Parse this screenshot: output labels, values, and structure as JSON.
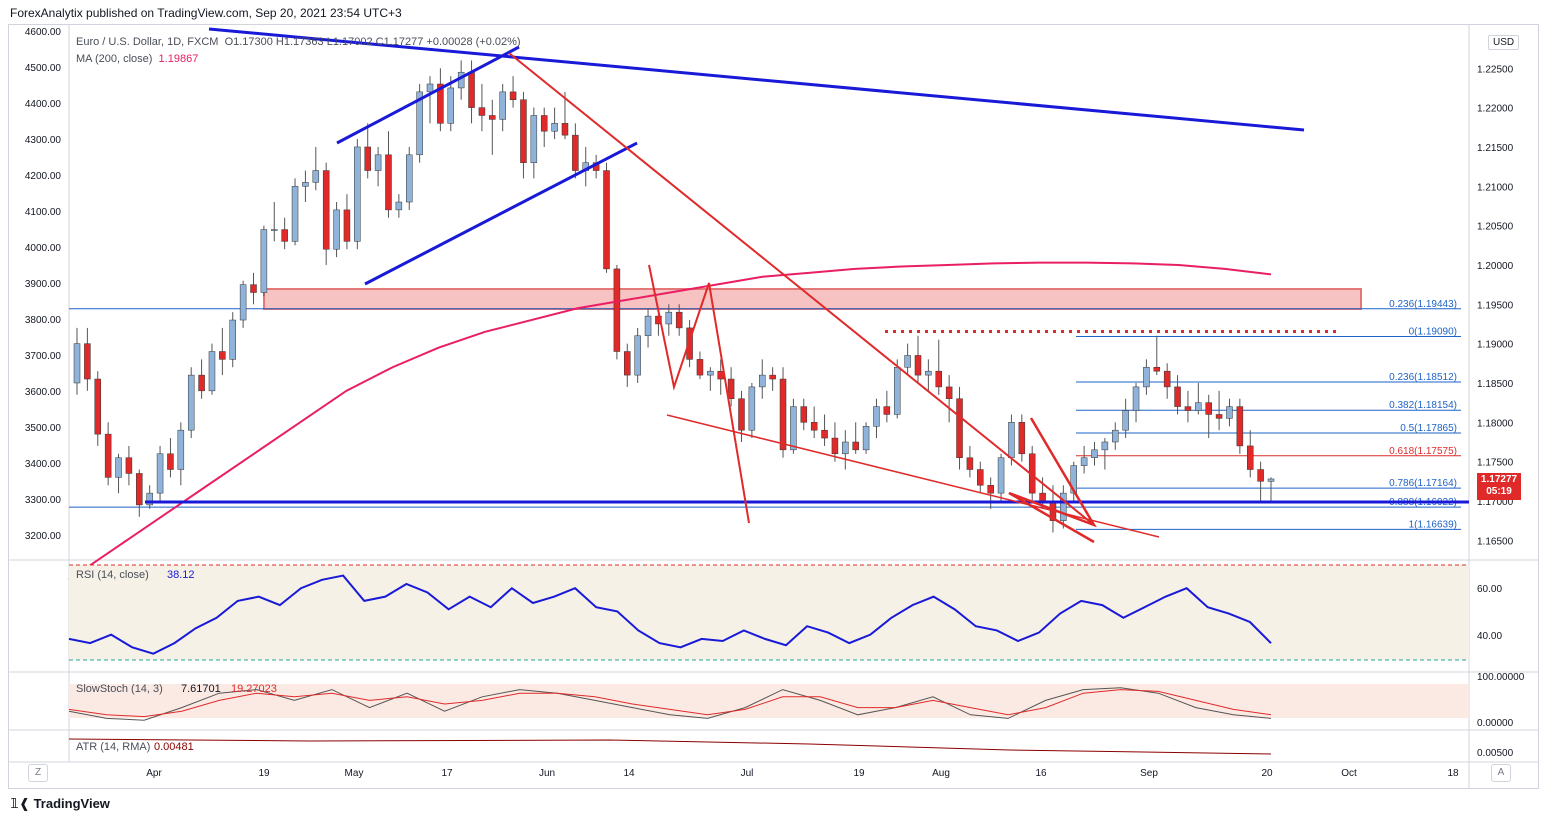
{
  "header": {
    "published_by": "ForexAnalytix published on TradingView.com, Sep 20, 2021 23:54 UTC+3"
  },
  "legend": {
    "symbol": "Euro / U.S. Dollar, 1D, FXCM",
    "ohlc": "O1.17300  H1.17363  L1.17002  C1.17277  +0.00028 (+0.02%)",
    "ma_label": "MA (200, close)",
    "ma_value": "1.19867",
    "ma_color": "#e91e63"
  },
  "currency_badge": "USD",
  "price_tag": {
    "price": "1.17277",
    "countdown": "05:19"
  },
  "footer": {
    "brand": "TradingView"
  },
  "corner_buttons": {
    "zoom": "Z",
    "auto": "A"
  },
  "chart_data": {
    "type": "candlestick",
    "title": "Euro / U.S. Dollar, 1D, FXCM",
    "colors": {
      "up": "#8fb3d9",
      "down": "#e02a2a",
      "trendline": "#1919d8",
      "fib": "#1e63c8",
      "ma": "#e91e63",
      "zone_fill": "#f5b8b8"
    },
    "left_axis_ticks": [
      "4600.00",
      "4500.00",
      "4400.00",
      "4300.00",
      "4200.00",
      "4100.00",
      "4000.00",
      "3900.00",
      "3800.00",
      "3700.00",
      "3600.00",
      "3500.00",
      "3400.00",
      "3300.00",
      "3200.00"
    ],
    "right_axis_ticks": [
      "1.22500",
      "1.22000",
      "1.21500",
      "1.21000",
      "1.20500",
      "1.20000",
      "1.19500",
      "1.19000",
      "1.18500",
      "1.18000",
      "1.17500",
      "1.17000",
      "1.16500"
    ],
    "y_range": [
      1.1625,
      1.2305
    ],
    "x_ticks": [
      "Apr",
      "19",
      "May",
      "17",
      "Jun",
      "14",
      "Jul",
      "19",
      "Aug",
      "16",
      "Sep",
      "20",
      "Oct",
      "18"
    ],
    "last_close": 1.17277,
    "fib_levels": [
      {
        "label": "0.236(1.19443)",
        "value": 1.19443
      },
      {
        "label": "0(1.19090)",
        "value": 1.1909
      },
      {
        "label": "0.236(1.18512)",
        "value": 1.18512
      },
      {
        "label": "0.382(1.18154)",
        "value": 1.18154
      },
      {
        "label": "0.5(1.17865)",
        "value": 1.17865
      },
      {
        "label": "0.618(1.17575)",
        "value": 1.17575
      },
      {
        "label": "0.786(1.17164)",
        "value": 1.17164
      },
      {
        "label": "0.888(1.16922)",
        "value": 1.16922
      },
      {
        "label": "1(1.16639)",
        "value": 1.16639
      }
    ],
    "candles": [
      [
        1.185,
        1.192,
        1.1835,
        1.19
      ],
      [
        1.19,
        1.192,
        1.184,
        1.1855
      ],
      [
        1.1855,
        1.1865,
        1.177,
        1.1785
      ],
      [
        1.1785,
        1.18,
        1.172,
        1.173
      ],
      [
        1.173,
        1.176,
        1.171,
        1.1755
      ],
      [
        1.1755,
        1.177,
        1.172,
        1.1735
      ],
      [
        1.1735,
        1.174,
        1.168,
        1.1695
      ],
      [
        1.1695,
        1.172,
        1.169,
        1.171
      ],
      [
        1.171,
        1.177,
        1.17,
        1.176
      ],
      [
        1.176,
        1.178,
        1.173,
        1.174
      ],
      [
        1.174,
        1.18,
        1.172,
        1.179
      ],
      [
        1.179,
        1.187,
        1.178,
        1.186
      ],
      [
        1.186,
        1.188,
        1.183,
        1.184
      ],
      [
        1.184,
        1.19,
        1.1835,
        1.189
      ],
      [
        1.189,
        1.192,
        1.186,
        1.188
      ],
      [
        1.188,
        1.194,
        1.187,
        1.193
      ],
      [
        1.193,
        1.198,
        1.192,
        1.1975
      ],
      [
        1.1975,
        1.199,
        1.195,
        1.1965
      ],
      [
        1.1965,
        1.205,
        1.196,
        1.2045
      ],
      [
        1.2045,
        1.208,
        1.203,
        1.2045
      ],
      [
        1.2045,
        1.206,
        1.202,
        1.203
      ],
      [
        1.203,
        1.211,
        1.2025,
        1.21
      ],
      [
        1.21,
        1.212,
        1.208,
        1.2105
      ],
      [
        1.2105,
        1.215,
        1.2095,
        1.212
      ],
      [
        1.212,
        1.213,
        1.2,
        1.202
      ],
      [
        1.202,
        1.208,
        1.201,
        1.207
      ],
      [
        1.207,
        1.209,
        1.202,
        1.203
      ],
      [
        1.203,
        1.216,
        1.202,
        1.215
      ],
      [
        1.215,
        1.218,
        1.211,
        1.212
      ],
      [
        1.212,
        1.215,
        1.21,
        1.214
      ],
      [
        1.214,
        1.217,
        1.206,
        1.207
      ],
      [
        1.207,
        1.209,
        1.206,
        1.208
      ],
      [
        1.208,
        1.215,
        1.207,
        1.214
      ],
      [
        1.214,
        1.223,
        1.213,
        1.222
      ],
      [
        1.222,
        1.224,
        1.218,
        1.223
      ],
      [
        1.223,
        1.225,
        1.217,
        1.218
      ],
      [
        1.218,
        1.224,
        1.217,
        1.2225
      ],
      [
        1.2225,
        1.226,
        1.221,
        1.2245
      ],
      [
        1.2245,
        1.226,
        1.218,
        1.22
      ],
      [
        1.22,
        1.223,
        1.217,
        1.219
      ],
      [
        1.219,
        1.221,
        1.214,
        1.2185
      ],
      [
        1.2185,
        1.223,
        1.217,
        1.222
      ],
      [
        1.222,
        1.224,
        1.22,
        1.221
      ],
      [
        1.221,
        1.222,
        1.211,
        1.213
      ],
      [
        1.213,
        1.22,
        1.211,
        1.219
      ],
      [
        1.219,
        1.22,
        1.215,
        1.217
      ],
      [
        1.217,
        1.22,
        1.216,
        1.218
      ],
      [
        1.218,
        1.222,
        1.216,
        1.2165
      ],
      [
        1.2165,
        1.218,
        1.211,
        1.212
      ],
      [
        1.212,
        1.215,
        1.21,
        1.213
      ],
      [
        1.213,
        1.214,
        1.211,
        1.212
      ],
      [
        1.212,
        1.213,
        1.199,
        1.1995
      ],
      [
        1.1995,
        1.2,
        1.188,
        1.189
      ],
      [
        1.189,
        1.19,
        1.1845,
        1.186
      ],
      [
        1.186,
        1.192,
        1.185,
        1.191
      ],
      [
        1.191,
        1.1945,
        1.1895,
        1.1935
      ],
      [
        1.1935,
        1.1945,
        1.191,
        1.1925
      ],
      [
        1.1925,
        1.195,
        1.191,
        1.194
      ],
      [
        1.194,
        1.195,
        1.191,
        1.192
      ],
      [
        1.192,
        1.193,
        1.187,
        1.188
      ],
      [
        1.188,
        1.189,
        1.1855,
        1.186
      ],
      [
        1.186,
        1.187,
        1.184,
        1.1865
      ],
      [
        1.1865,
        1.188,
        1.1835,
        1.1855
      ],
      [
        1.1855,
        1.187,
        1.182,
        1.183
      ],
      [
        1.183,
        1.184,
        1.1775,
        1.179
      ],
      [
        1.179,
        1.185,
        1.178,
        1.1845
      ],
      [
        1.1845,
        1.188,
        1.183,
        1.186
      ],
      [
        1.186,
        1.187,
        1.184,
        1.1855
      ],
      [
        1.1855,
        1.187,
        1.1755,
        1.1765
      ],
      [
        1.1765,
        1.183,
        1.176,
        1.182
      ],
      [
        1.182,
        1.183,
        1.179,
        1.18
      ],
      [
        1.18,
        1.182,
        1.178,
        1.179
      ],
      [
        1.179,
        1.181,
        1.177,
        1.178
      ],
      [
        1.178,
        1.18,
        1.175,
        1.176
      ],
      [
        1.176,
        1.179,
        1.174,
        1.1775
      ],
      [
        1.1775,
        1.18,
        1.176,
        1.1765
      ],
      [
        1.1765,
        1.18,
        1.176,
        1.1795
      ],
      [
        1.1795,
        1.183,
        1.178,
        1.182
      ],
      [
        1.182,
        1.184,
        1.18,
        1.181
      ],
      [
        1.181,
        1.188,
        1.1805,
        1.187
      ],
      [
        1.187,
        1.19,
        1.186,
        1.1885
      ],
      [
        1.1885,
        1.191,
        1.185,
        1.186
      ],
      [
        1.186,
        1.188,
        1.184,
        1.1865
      ],
      [
        1.1865,
        1.1905,
        1.1835,
        1.1845
      ],
      [
        1.1845,
        1.186,
        1.18,
        1.183
      ],
      [
        1.183,
        1.1845,
        1.174,
        1.1755
      ],
      [
        1.1755,
        1.177,
        1.173,
        1.174
      ],
      [
        1.174,
        1.175,
        1.171,
        1.172
      ],
      [
        1.172,
        1.173,
        1.169,
        1.171
      ],
      [
        1.171,
        1.176,
        1.17,
        1.1755
      ],
      [
        1.1755,
        1.181,
        1.1745,
        1.18
      ],
      [
        1.18,
        1.181,
        1.175,
        1.176
      ],
      [
        1.176,
        1.177,
        1.17,
        1.171
      ],
      [
        1.171,
        1.173,
        1.169,
        1.17
      ],
      [
        1.17,
        1.172,
        1.166,
        1.1675
      ],
      [
        1.1675,
        1.172,
        1.1665,
        1.171
      ],
      [
        1.171,
        1.175,
        1.17,
        1.1745
      ],
      [
        1.1745,
        1.177,
        1.1735,
        1.1755
      ],
      [
        1.1755,
        1.1775,
        1.1745,
        1.1765
      ],
      [
        1.1765,
        1.178,
        1.174,
        1.1775
      ],
      [
        1.1775,
        1.18,
        1.1765,
        1.179
      ],
      [
        1.179,
        1.183,
        1.178,
        1.1815
      ],
      [
        1.1815,
        1.185,
        1.18,
        1.1845
      ],
      [
        1.1845,
        1.188,
        1.1835,
        1.187
      ],
      [
        1.187,
        1.191,
        1.186,
        1.1865
      ],
      [
        1.1865,
        1.1875,
        1.183,
        1.1845
      ],
      [
        1.1845,
        1.186,
        1.181,
        1.182
      ],
      [
        1.182,
        1.184,
        1.18,
        1.1815
      ],
      [
        1.1815,
        1.185,
        1.181,
        1.1825
      ],
      [
        1.1825,
        1.1835,
        1.178,
        1.181
      ],
      [
        1.181,
        1.184,
        1.179,
        1.1805
      ],
      [
        1.1805,
        1.183,
        1.1795,
        1.182
      ],
      [
        1.182,
        1.183,
        1.176,
        1.177
      ],
      [
        1.177,
        1.179,
        1.173,
        1.174
      ],
      [
        1.174,
        1.175,
        1.17,
        1.1725
      ],
      [
        1.1725,
        1.173,
        1.17,
        1.1728
      ]
    ],
    "ma200": [
      1.16,
      1.164,
      1.168,
      1.172,
      1.176,
      1.18,
      1.184,
      1.187,
      1.1895,
      1.1915,
      1.193,
      1.1945,
      1.1955,
      1.1965,
      1.1975,
      1.1985,
      1.199,
      1.1995,
      1.1998,
      1.2,
      1.2002,
      1.2003,
      1.2003,
      1.2002,
      1.2,
      1.1995,
      1.1988
    ],
    "rsi": {
      "label": "RSI (14, close)",
      "value": "38.12",
      "ticks": [
        "60.00",
        "40.00"
      ],
      "color": "#1919d8"
    },
    "stoch": {
      "label": "SlowStoch (14, 3)",
      "k": "7.61701",
      "d": "19.27023",
      "ticks": [
        "100.00000",
        "0.00000"
      ]
    },
    "atr": {
      "label": "ATR (14, RMA)",
      "value": "0.00481",
      "ticks": [
        "0.00500"
      ]
    }
  }
}
